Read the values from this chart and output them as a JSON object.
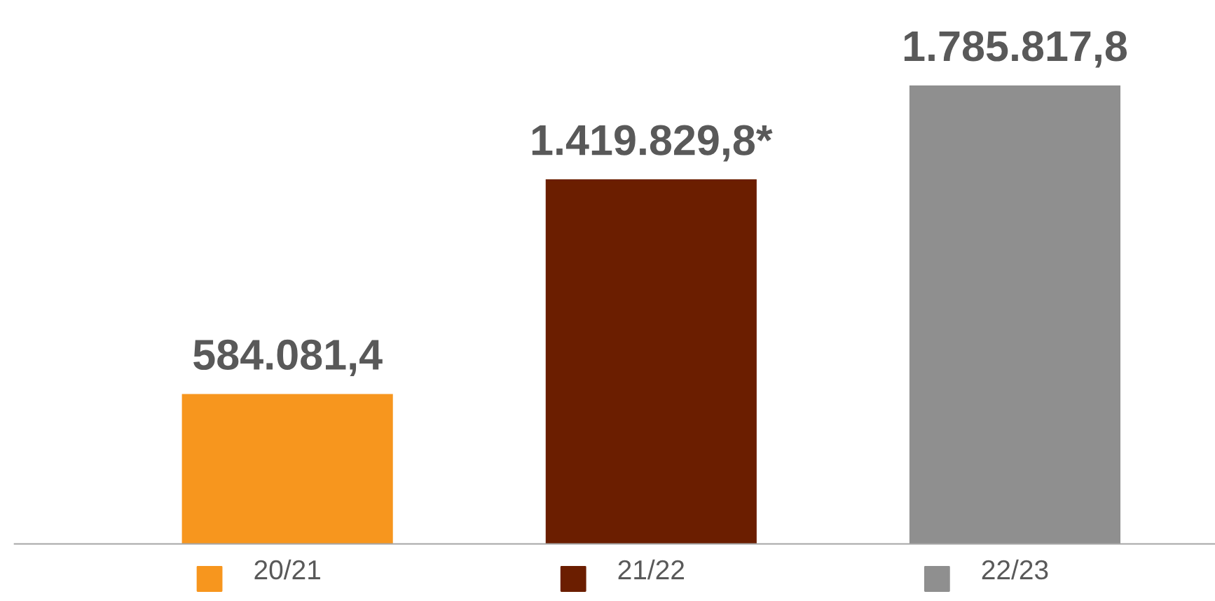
{
  "chart_data": {
    "type": "bar",
    "categories": [
      "20/21",
      "21/22",
      "22/23"
    ],
    "values": [
      584081.4,
      1419829.8,
      1785817.8
    ],
    "colors": [
      "#f7961e",
      "#6b1e00",
      "#8f8f8f"
    ],
    "value_labels": [
      "584.081,4",
      "1.419.829,8*",
      "1.785.817,8"
    ]
  }
}
